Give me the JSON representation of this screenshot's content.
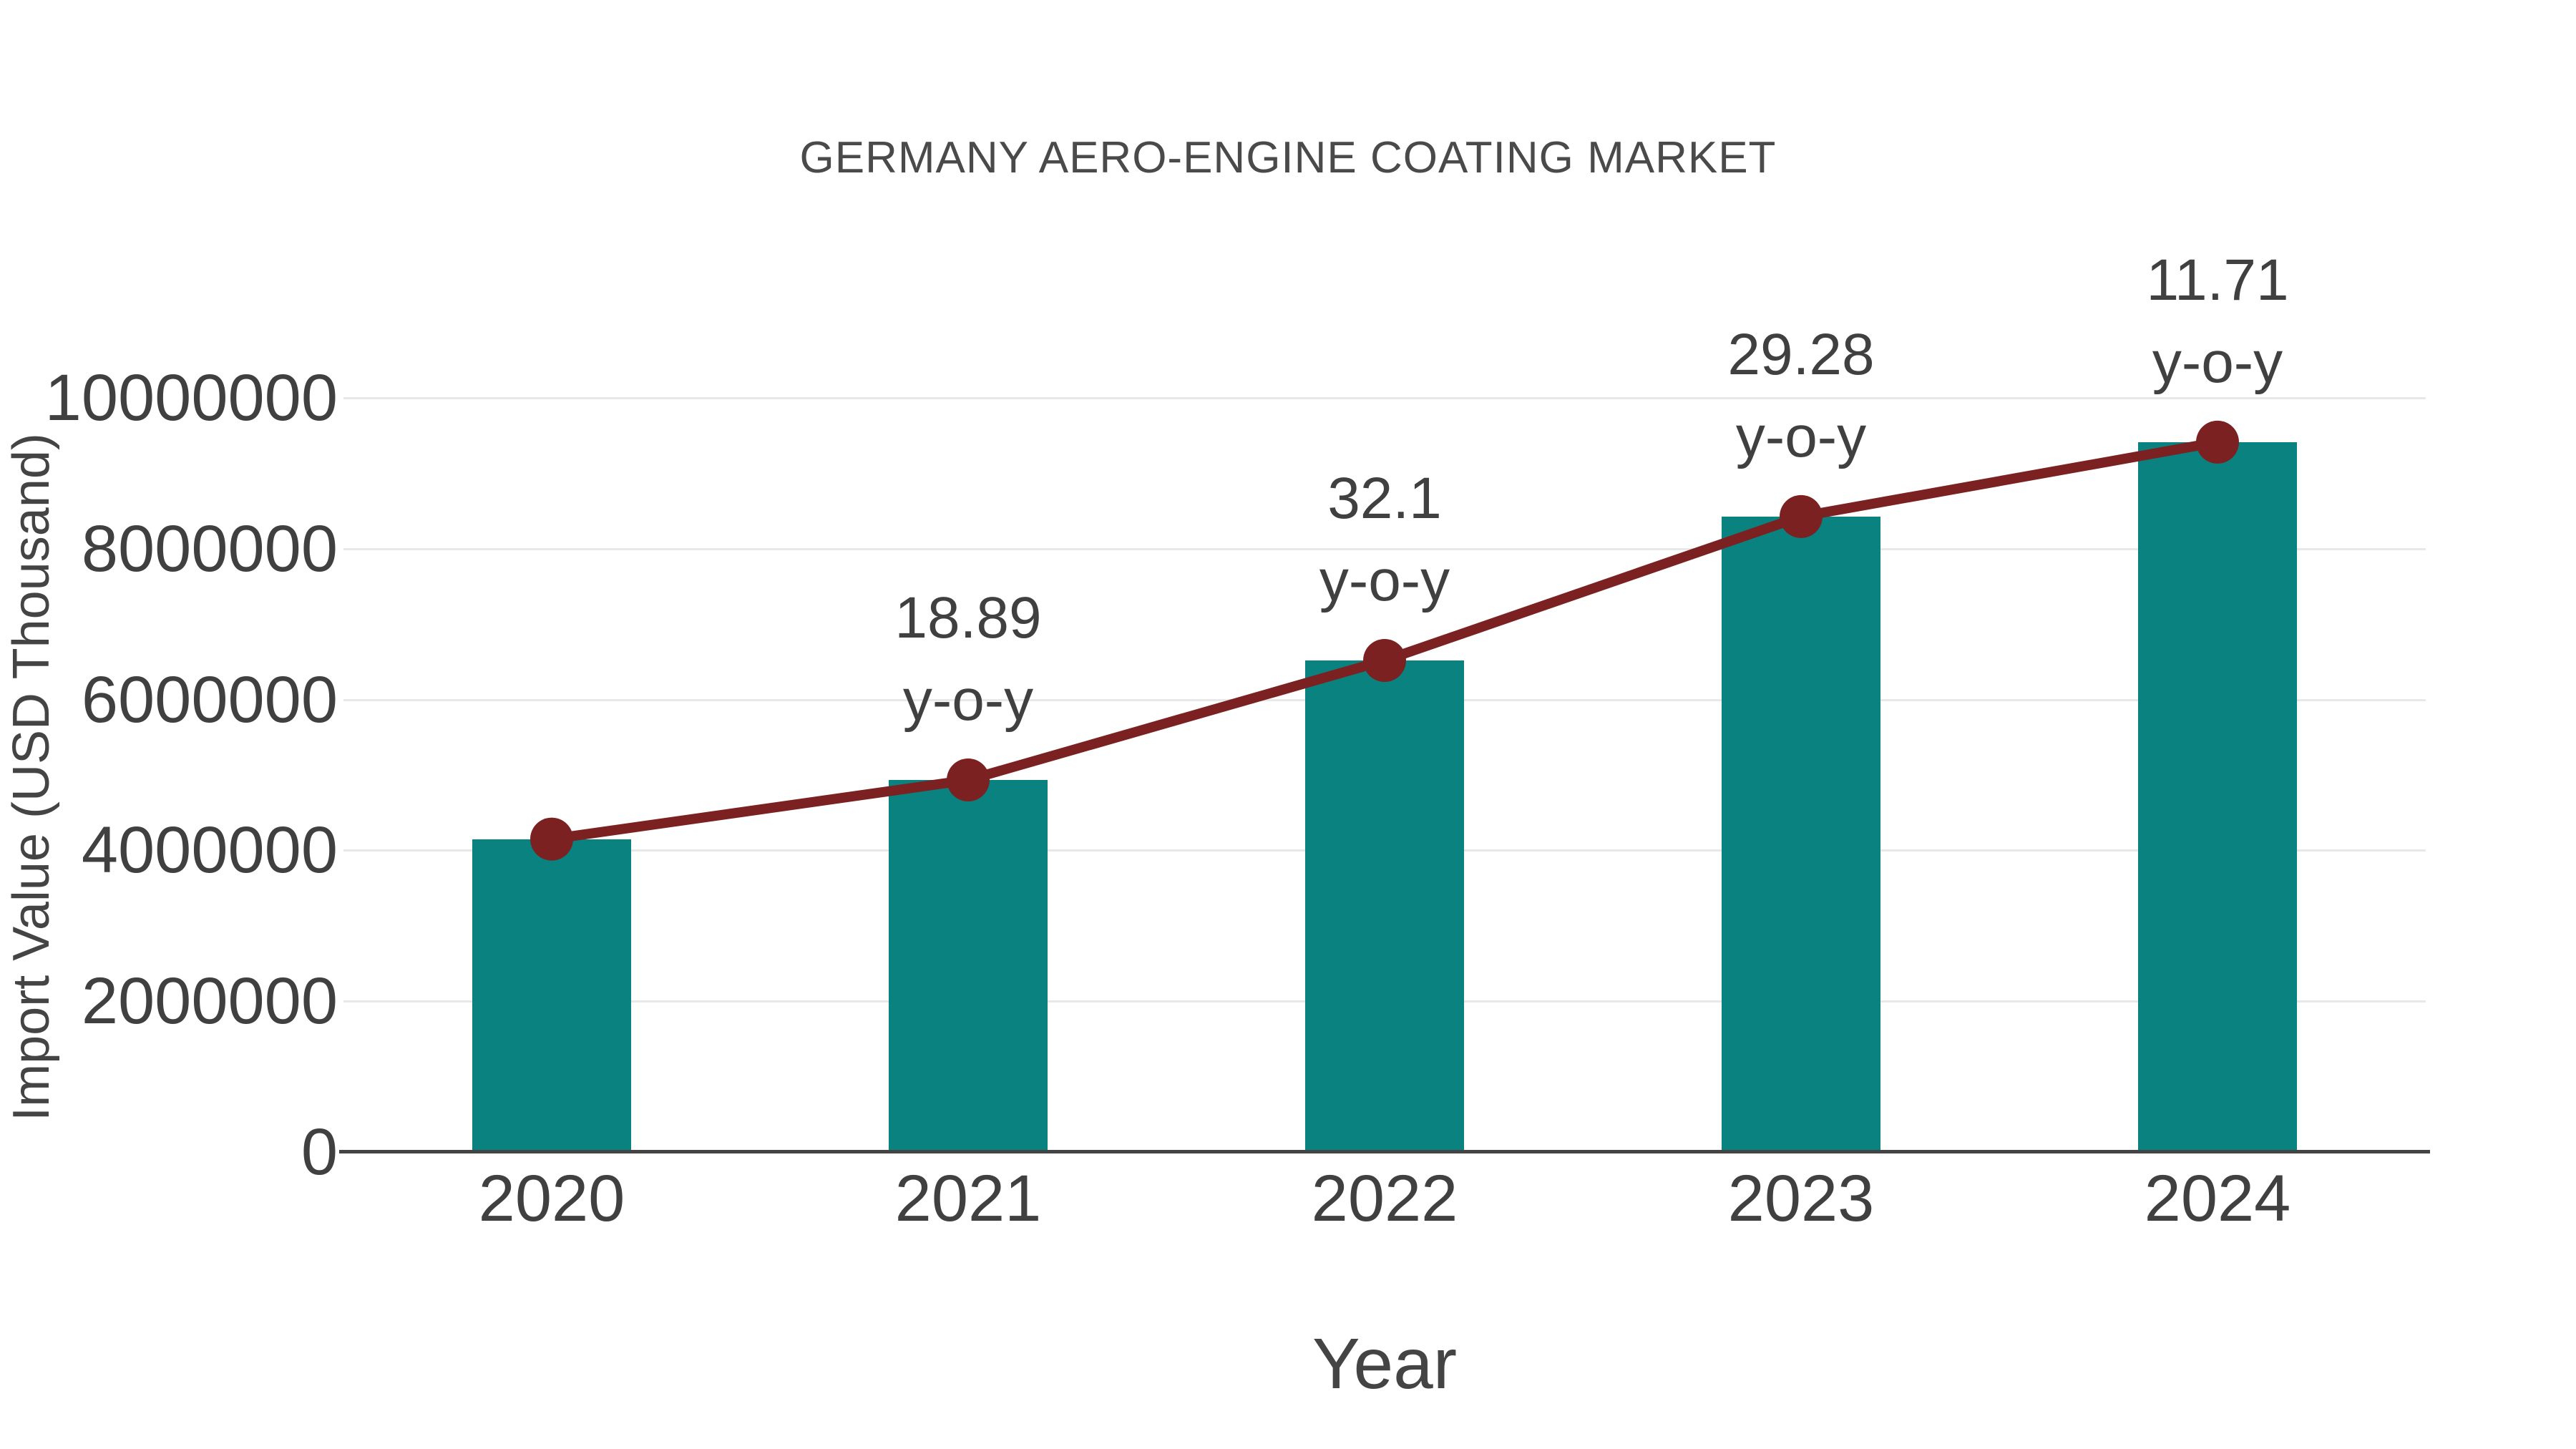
{
  "figure": {
    "background": "#ffffff"
  },
  "chart_data": {
    "type": "bar",
    "title": "GERMANY AERO-ENGINE COATING MARKET",
    "xlabel": "Year",
    "ylabel": "Import Value (USD Thousand)",
    "categories": [
      "2020",
      "2021",
      "2022",
      "2023",
      "2024"
    ],
    "series": [
      {
        "name": "Import Value (USD Thousand)",
        "type": "bar",
        "values": [
          4150000,
          4934000,
          6518000,
          8426000,
          9413000
        ]
      },
      {
        "name": "y-o-y growth",
        "type": "line",
        "values": [
          4150000,
          4934000,
          6518000,
          8426000,
          9413000
        ],
        "point_labels": [
          null,
          "18.89",
          "32.1",
          "29.28",
          "11.71"
        ],
        "point_label_line2": "y-o-y"
      }
    ],
    "yticks": [
      0,
      2000000,
      4000000,
      6000000,
      8000000,
      10000000
    ],
    "ytick_labels": [
      "0",
      "2000000",
      "4000000",
      "6000000",
      "8000000",
      "10000000"
    ],
    "ylim": [
      0,
      10000000
    ],
    "grid": true,
    "legend": false,
    "colors": {
      "bar": "#0a8380",
      "line": "#7c2121",
      "marker": "#7c2121",
      "grid": "#e8e8e8",
      "axis": "#444444",
      "tick_text": "#404040",
      "title_text": "#4a4a4a"
    }
  }
}
